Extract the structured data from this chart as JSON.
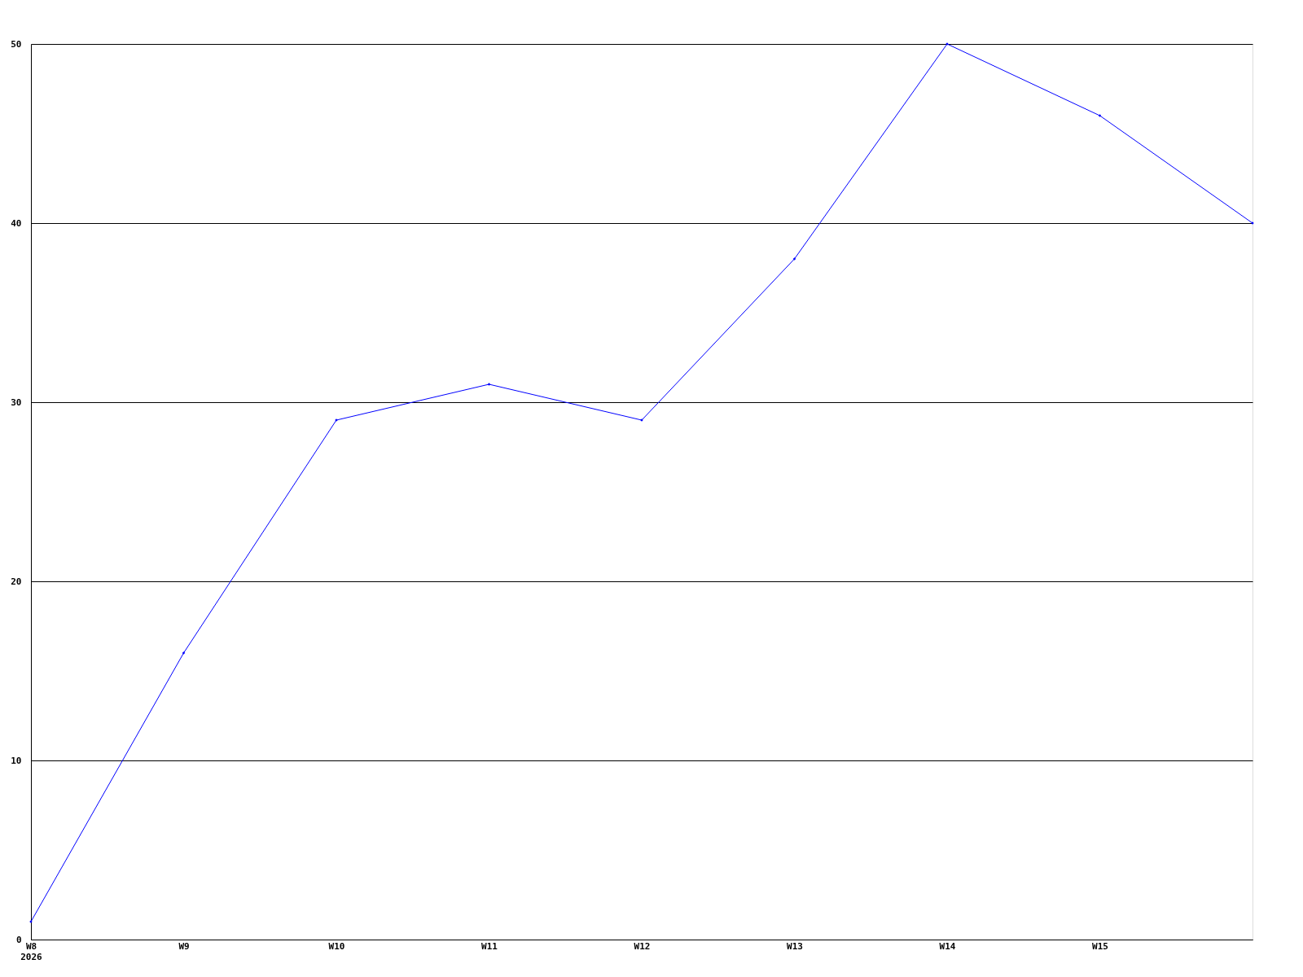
{
  "chart_data": {
    "type": "line",
    "categories": [
      "W8",
      "W9",
      "W10",
      "W11",
      "W12",
      "W13",
      "W14",
      "W15",
      null
    ],
    "series": [
      {
        "color": "#0000ff",
        "values": [
          1,
          16,
          29,
          31,
          29,
          38,
          50,
          46,
          40
        ]
      }
    ],
    "annotations": [
      "2026"
    ],
    "ylim": [
      0,
      50
    ],
    "yticks": [
      0,
      10,
      20,
      30,
      40,
      50
    ],
    "grid": "y",
    "marker": "diamond",
    "line_style": "solid"
  }
}
